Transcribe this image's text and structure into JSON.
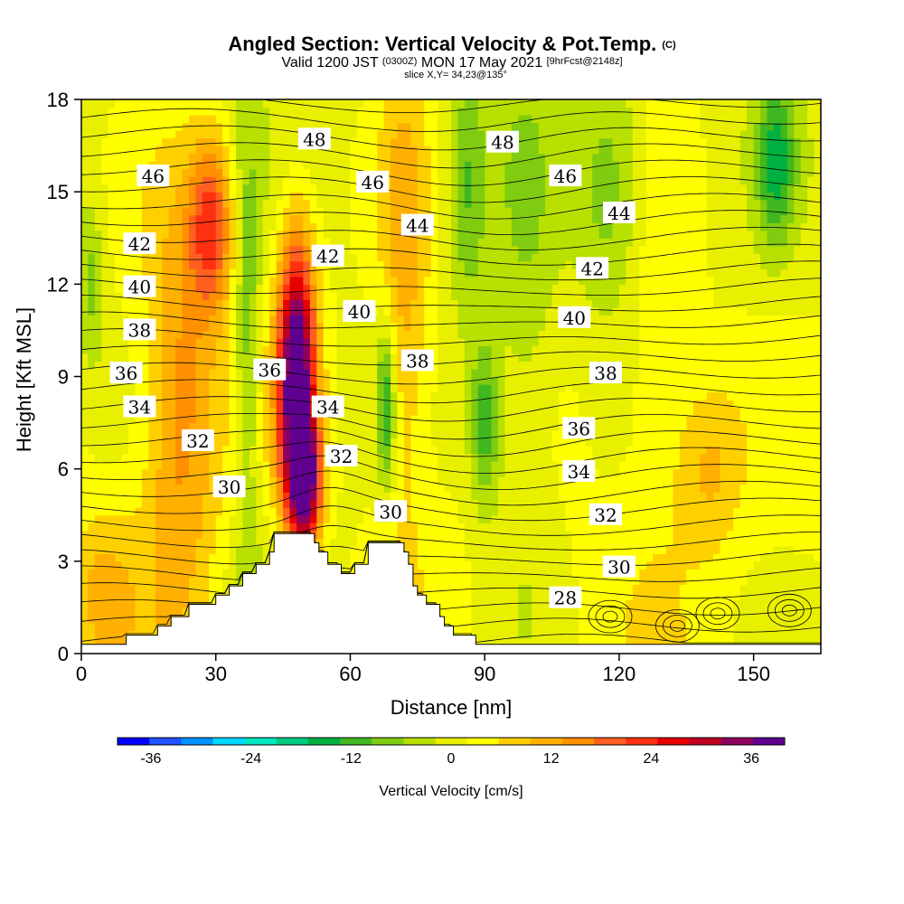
{
  "header": {
    "title_main": "Angled Section: Vertical Velocity & Pot.Temp.",
    "title_unit": "(C)",
    "subtitle_valid": "Valid 1200 JST",
    "subtitle_utc": "(0300Z)",
    "subtitle_date": "MON 17 May 2021",
    "subtitle_fcst": "[9hrFcst@2148z]",
    "slice": "slice X,Y= 34,23@135°"
  },
  "chart_data": {
    "type": "heatmap",
    "xlabel": "Distance [nm]",
    "ylabel": "Height [Kft MSL]",
    "xlim": [
      0,
      165
    ],
    "ylim": [
      0,
      18
    ],
    "xticks": [
      0,
      30,
      60,
      90,
      120,
      150
    ],
    "yticks": [
      0,
      3,
      6,
      9,
      12,
      15,
      18
    ],
    "colorbar": {
      "label": "Vertical Velocity [cm/s]",
      "tick_values": [
        -36,
        -24,
        -12,
        0,
        12,
        24,
        36
      ],
      "min": -40,
      "max": 40,
      "colors": [
        "#0000ff",
        "#2050ff",
        "#0090ff",
        "#00d8ff",
        "#00e8c0",
        "#00cc80",
        "#00b040",
        "#40b820",
        "#80cc10",
        "#b8e000",
        "#e8f000",
        "#ffff00",
        "#ffd000",
        "#ffb000",
        "#ff9000",
        "#ff6020",
        "#ff3010",
        "#e80000",
        "#c00020",
        "#900060",
        "#600090"
      ]
    },
    "terrain": [
      [
        0,
        0.3
      ],
      [
        10,
        0.3
      ],
      [
        10,
        0.6
      ],
      [
        17,
        0.6
      ],
      [
        17,
        0.9
      ],
      [
        20,
        0.9
      ],
      [
        20,
        1.2
      ],
      [
        24,
        1.2
      ],
      [
        24,
        1.6
      ],
      [
        30,
        1.6
      ],
      [
        30,
        1.9
      ],
      [
        33,
        1.9
      ],
      [
        33,
        2.2
      ],
      [
        36,
        2.2
      ],
      [
        36,
        2.6
      ],
      [
        39,
        2.6
      ],
      [
        39,
        2.9
      ],
      [
        42,
        2.9
      ],
      [
        42,
        3.3
      ],
      [
        43,
        3.3
      ],
      [
        43,
        3.6
      ],
      [
        43,
        3.9
      ],
      [
        52,
        3.9
      ],
      [
        52,
        3.6
      ],
      [
        53,
        3.6
      ],
      [
        53,
        3.3
      ],
      [
        55,
        3.3
      ],
      [
        55,
        2.9
      ],
      [
        58,
        2.9
      ],
      [
        58,
        2.6
      ],
      [
        61,
        2.6
      ],
      [
        61,
        2.9
      ],
      [
        64,
        2.9
      ],
      [
        64,
        3.6
      ],
      [
        72,
        3.6
      ],
      [
        72,
        3.3
      ],
      [
        73,
        3.3
      ],
      [
        73,
        2.9
      ],
      [
        74,
        2.9
      ],
      [
        74,
        2.2
      ],
      [
        75,
        2.2
      ],
      [
        75,
        1.9
      ],
      [
        77,
        1.9
      ],
      [
        77,
        1.6
      ],
      [
        80,
        1.6
      ],
      [
        80,
        1.2
      ],
      [
        81,
        1.2
      ],
      [
        81,
        0.9
      ],
      [
        83,
        0.9
      ],
      [
        83,
        0.6
      ],
      [
        88,
        0.6
      ],
      [
        88,
        0.3
      ],
      [
        165,
        0.3
      ]
    ],
    "updraft_cells": [
      {
        "x": 48,
        "y": 9.0,
        "sx": 3.0,
        "sy": 3.2,
        "w": 42
      },
      {
        "x": 50,
        "y": 5.5,
        "sx": 2.5,
        "sy": 1.5,
        "w": 30
      },
      {
        "x": 29,
        "y": 14.0,
        "sx": 3.5,
        "sy": 2.0,
        "w": 20
      },
      {
        "x": 22,
        "y": 8.0,
        "sx": 6.0,
        "sy": 5.0,
        "w": 14
      },
      {
        "x": 72,
        "y": 12.0,
        "sx": 4.0,
        "sy": 6.0,
        "w": 10
      },
      {
        "x": 128,
        "y": 11.0,
        "sx": 6.0,
        "sy": 6.0,
        "w": 5
      },
      {
        "x": 140,
        "y": 6.0,
        "sx": 5.0,
        "sy": 2.0,
        "w": 8
      },
      {
        "x": 5,
        "y": 2.0,
        "sx": 5.0,
        "sy": 2.0,
        "w": 8
      }
    ],
    "downdraft_cells": [
      {
        "x": 68,
        "y": 8.0,
        "sx": 1.5,
        "sy": 2.0,
        "w": -16
      },
      {
        "x": 37,
        "y": 10.0,
        "sx": 2.0,
        "sy": 5.0,
        "w": -10
      },
      {
        "x": 90,
        "y": 7.5,
        "sx": 2.5,
        "sy": 2.0,
        "w": -14
      },
      {
        "x": 86,
        "y": 15.0,
        "sx": 3.0,
        "sy": 3.0,
        "w": -10
      },
      {
        "x": 119,
        "y": 15.0,
        "sx": 6.0,
        "sy": 3.0,
        "w": -10
      },
      {
        "x": 155,
        "y": 16.0,
        "sx": 3.0,
        "sy": 2.0,
        "w": -14
      },
      {
        "x": 2,
        "y": 12.0,
        "sx": 2.0,
        "sy": 2.0,
        "w": -8
      },
      {
        "x": 99,
        "y": 11.0,
        "sx": 5.0,
        "sy": 7.0,
        "w": -6
      },
      {
        "x": 45,
        "y": 2.0,
        "sx": 10.0,
        "sy": 2.0,
        "w": -4
      }
    ],
    "isentrope_labels": [
      {
        "value": "46",
        "x": 16,
        "y": 15.5
      },
      {
        "value": "48",
        "x": 52,
        "y": 16.7
      },
      {
        "value": "48",
        "x": 94,
        "y": 16.6
      },
      {
        "value": "46",
        "x": 65,
        "y": 15.3
      },
      {
        "value": "46",
        "x": 108,
        "y": 15.5
      },
      {
        "value": "44",
        "x": 75,
        "y": 13.9
      },
      {
        "value": "44",
        "x": 120,
        "y": 14.3
      },
      {
        "value": "42",
        "x": 13,
        "y": 13.3
      },
      {
        "value": "42",
        "x": 55,
        "y": 12.9
      },
      {
        "value": "42",
        "x": 114,
        "y": 12.5
      },
      {
        "value": "40",
        "x": 13,
        "y": 11.9
      },
      {
        "value": "40",
        "x": 62,
        "y": 11.1
      },
      {
        "value": "40",
        "x": 110,
        "y": 10.9
      },
      {
        "value": "38",
        "x": 13,
        "y": 10.5
      },
      {
        "value": "38",
        "x": 75,
        "y": 9.5
      },
      {
        "value": "38",
        "x": 117,
        "y": 9.1
      },
      {
        "value": "36",
        "x": 10,
        "y": 9.1
      },
      {
        "value": "36",
        "x": 42,
        "y": 9.2
      },
      {
        "value": "36",
        "x": 111,
        "y": 7.3
      },
      {
        "value": "34",
        "x": 13,
        "y": 8.0
      },
      {
        "value": "34",
        "x": 55,
        "y": 8.0
      },
      {
        "value": "34",
        "x": 111,
        "y": 5.9
      },
      {
        "value": "32",
        "x": 26,
        "y": 6.9
      },
      {
        "value": "32",
        "x": 58,
        "y": 6.4
      },
      {
        "value": "32",
        "x": 117,
        "y": 4.5
      },
      {
        "value": "30",
        "x": 33,
        "y": 5.4
      },
      {
        "value": "30",
        "x": 69,
        "y": 4.6
      },
      {
        "value": "30",
        "x": 120,
        "y": 2.8
      },
      {
        "value": "28",
        "x": 108,
        "y": 1.8
      }
    ]
  }
}
